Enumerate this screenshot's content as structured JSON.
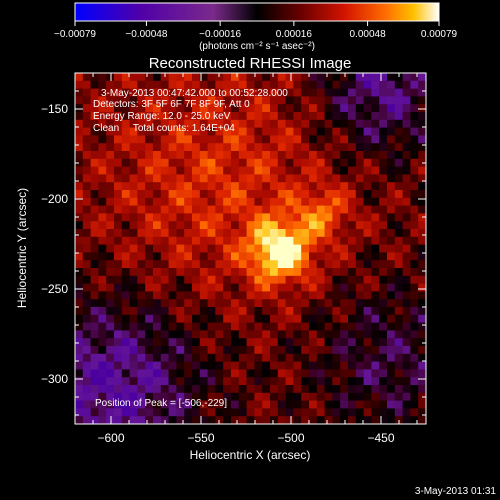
{
  "chart_data": {
    "type": "heatmap",
    "title": "Reconstructed RHESSI Image",
    "xlabel": "Heliocentric X (arcsec)",
    "ylabel": "Heliocentric Y (arcsec)",
    "xlim": [
      -620,
      -425
    ],
    "ylim": [
      -325,
      -130
    ],
    "x_ticks": [
      -600,
      -550,
      -500,
      -450
    ],
    "y_ticks": [
      -150,
      -200,
      -250,
      -300
    ],
    "x_tick_labels": [
      "−600",
      "−550",
      "−500",
      "−450"
    ],
    "y_tick_labels": [
      "−150",
      "−200",
      "−250",
      "−300"
    ],
    "colorbar": {
      "range": [
        -0.00079,
        0.00079
      ],
      "ticks": [
        -0.00079,
        -0.00048,
        -0.00016,
        0.00016,
        0.00048,
        0.00079
      ],
      "tick_labels": [
        "−0.00079",
        "−0.00048",
        "−0.00016",
        "0.00016",
        "0.00048",
        "0.00079"
      ],
      "unit_label": "(photons cm⁻² s⁻¹ asec⁻²)",
      "colors": [
        "#0000ff",
        "#4b00a0",
        "#7a2090",
        "#000000",
        "#3c0000",
        "#8a0000",
        "#d21400",
        "#ff5a00",
        "#ffb000",
        "#ffff60",
        "#ffffff"
      ]
    },
    "info_lines": [
      "3-May-2013 00:47:42.000 to 00:52:28.000",
      "Detectors: 3F 5F 6F 7F 8F 9F, Att 0",
      "Energy Range: 12.0 - 25.0 keV",
      "Clean     Total counts: 1.64E+04"
    ],
    "peak_label": "Position of Peak = [-506,-229]",
    "peak": {
      "x": -506,
      "y": -229
    },
    "grid": false
  },
  "footer": {
    "timestamp": "3-May-2013 01:31"
  }
}
